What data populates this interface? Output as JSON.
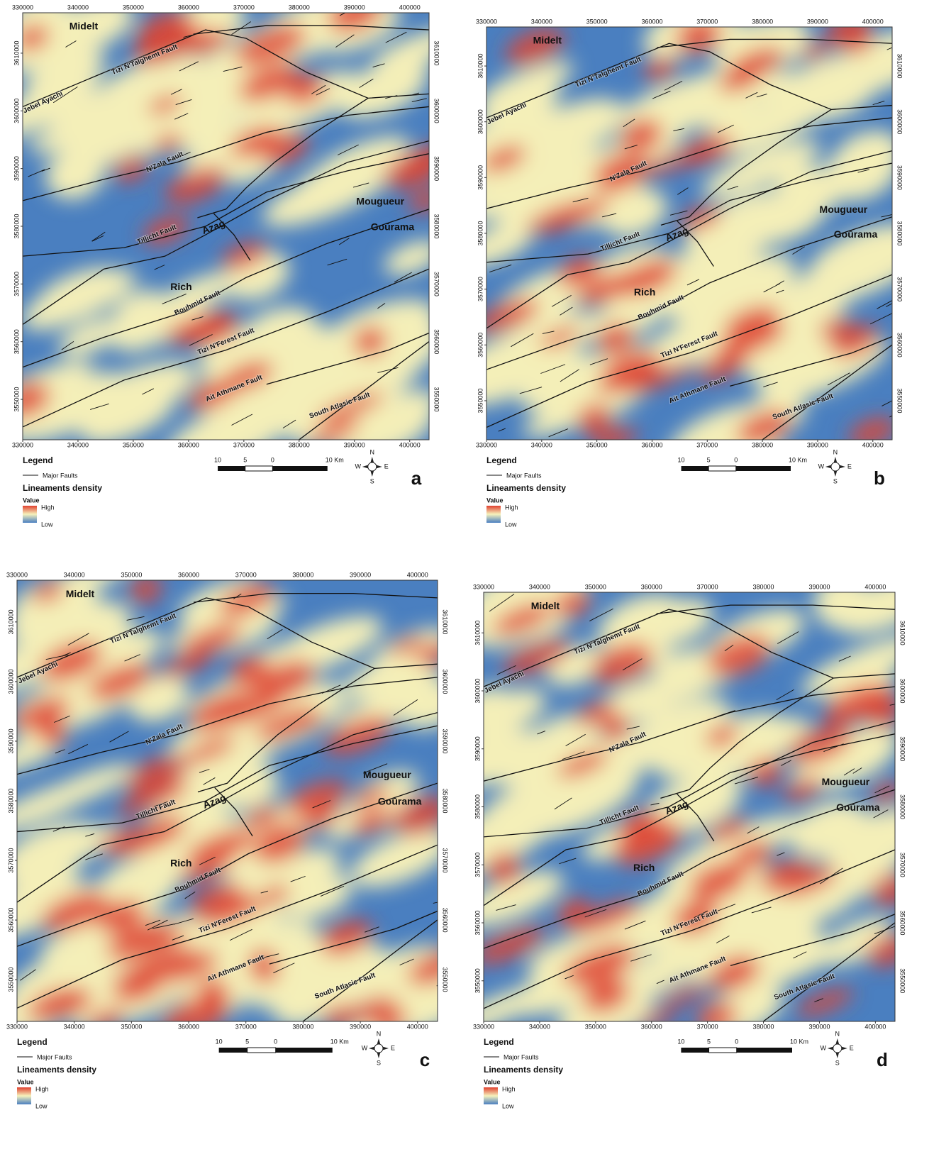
{
  "x_ticks": [
    330000,
    340000,
    350000,
    360000,
    370000,
    380000,
    390000,
    400000
  ],
  "y_ticks": [
    3550000,
    3560000,
    3570000,
    3580000,
    3590000,
    3600000,
    3610000
  ],
  "x_extent": [
    330000,
    403500
  ],
  "y_extent": [
    3543000,
    3617000
  ],
  "places": [
    "Midelt",
    "Rich",
    "Mougueur",
    "Goūrama",
    "Azag"
  ],
  "fault_labels": [
    "Tizi N'Talghemt Fault",
    "Jebel Ayachi",
    "N'Zala Fault",
    "Tillicht Fault",
    "Bouhmid Fault",
    "Tizi N'Ferest Fault",
    "Ait Athmane Fault",
    "South Atlasic Fault"
  ],
  "legend": {
    "title": "Legend",
    "major_faults": "Major Faults",
    "density_title": "Lineaments density",
    "value": "Value",
    "high": "High",
    "low": "Low"
  },
  "scale_bar": [
    "10",
    "5",
    "0",
    "10 Km"
  ],
  "compass": {
    "n": "N",
    "s": "S",
    "e": "E",
    "w": "W"
  },
  "panels": [
    {
      "label": "a"
    },
    {
      "label": "b"
    },
    {
      "label": "c"
    },
    {
      "label": "d"
    }
  ]
}
